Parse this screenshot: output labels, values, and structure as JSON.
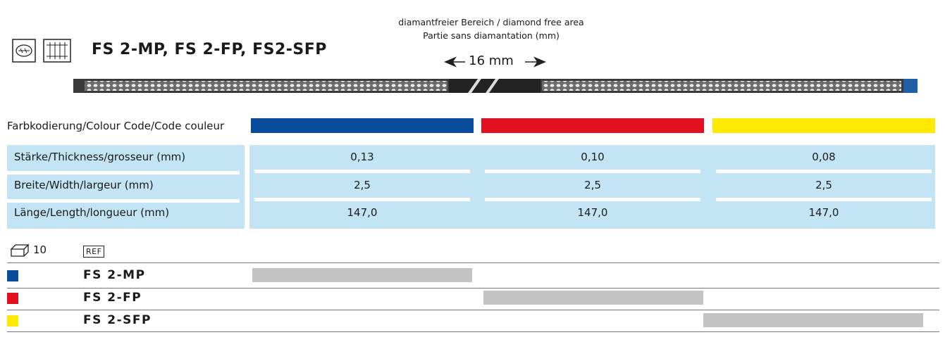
{
  "title": "FS 2-MP, FS 2-FP, FS2-SFP",
  "diamond_free": {
    "line1": "diamantfreier Bereich / diamond free area",
    "line2": "Partie sans diamantation (mm)",
    "length": "16 mm"
  },
  "colour_code": {
    "label": "Farbkodierung/Colour Code/Code couleur",
    "colors": [
      "#0a4c9c",
      "#e3111f",
      "#ffe900"
    ]
  },
  "specs": {
    "rows": [
      {
        "label": "Stärke/Thickness/grosseur (mm)",
        "values": [
          "0,13",
          "0,10",
          "0,08"
        ]
      },
      {
        "label": "Breite/Width/largeur (mm)",
        "values": [
          "2,5",
          "2,5",
          "2,5"
        ]
      },
      {
        "label": "Länge/Length/longueur (mm)",
        "values": [
          "147,0",
          "147,0",
          "147,0"
        ]
      }
    ]
  },
  "pack": {
    "quantity": "10",
    "ref_label": "REF"
  },
  "products": [
    {
      "ref": "FS 2-MP",
      "color": "#0a4c9c"
    },
    {
      "ref": "FS 2-FP",
      "color": "#e3111f"
    },
    {
      "ref": "FS 2-SFP",
      "color": "#ffe900"
    }
  ]
}
